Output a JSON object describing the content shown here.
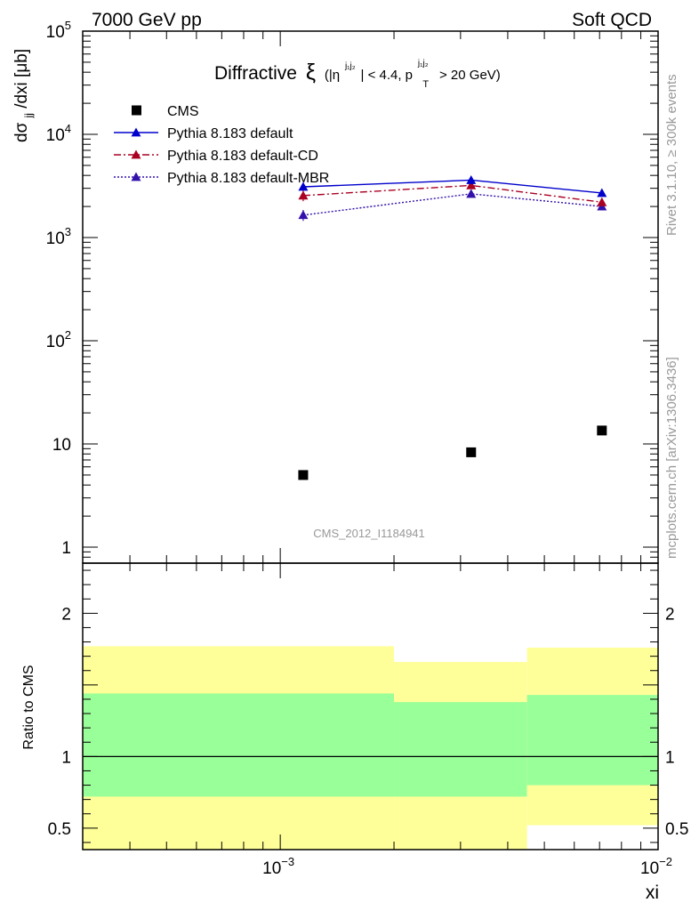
{
  "header": {
    "left": "7000 GeV pp",
    "right": "Soft QCD"
  },
  "side_labels": {
    "rivet": "Rivet 3.1.10, ≥ 300k events",
    "mcplots": "mcplots.cern.ch [arXiv:1306.3436]"
  },
  "watermark": "CMS_2012_I1184941",
  "chart_data": {
    "type": "scatter",
    "title": {
      "main": "Diffractive",
      "xi_symbol": "ξ",
      "cut_prefix": "(|η",
      "eta_sup": "j₁j₂",
      "cut_mid": "| < 4.4, p",
      "pt_sub": "T",
      "pt_sup": "j₁j₂",
      "cut_suffix": "> 20 GeV)"
    },
    "ylabel": "dσjj/dxi [μb]",
    "ylabel_parts": {
      "d": "dσ",
      "sub": "jj",
      "rest": "/dxi [μb]"
    },
    "xlabel": "xi",
    "xscale": "log",
    "yscale": "log",
    "xlim": [
      0.0003,
      0.01
    ],
    "ylim": [
      0.7,
      100000
    ],
    "y_ticks": [
      {
        "value": 1,
        "label": "1",
        "base": "1",
        "exp": ""
      },
      {
        "value": 10,
        "label": "10",
        "base": "10",
        "exp": ""
      },
      {
        "value": 100,
        "label": "10^2",
        "base": "10",
        "exp": "2"
      },
      {
        "value": 1000,
        "label": "10^3",
        "base": "10",
        "exp": "3"
      },
      {
        "value": 10000,
        "label": "10^4",
        "base": "10",
        "exp": "4"
      },
      {
        "value": 100000,
        "label": "10^5",
        "base": "10",
        "exp": "5"
      }
    ],
    "x_ticks": [
      {
        "value": 0.001,
        "label": "10^-3",
        "base": "10",
        "exp": "−3"
      },
      {
        "value": 0.01,
        "label": "10^-2",
        "base": "10",
        "exp": "−2"
      }
    ],
    "bins": [
      [
        0.0003,
        0.002
      ],
      [
        0.002,
        0.0045
      ],
      [
        0.0045,
        0.01
      ]
    ],
    "x": [
      0.00115,
      0.0032,
      0.0071
    ],
    "series": [
      {
        "name": "CMS",
        "values": [
          5.0,
          8.3,
          13.5
        ],
        "color": "#000000",
        "marker": "square",
        "line": "none"
      },
      {
        "name": "Pythia 8.183 default",
        "values": [
          3100,
          3600,
          2700
        ],
        "errors": [
          250,
          280,
          150
        ],
        "color": "#0000cc",
        "marker": "triangle",
        "line": "solid"
      },
      {
        "name": "Pythia 8.183 default-CD",
        "values": [
          2550,
          3200,
          2200
        ],
        "errors": [
          300,
          250,
          150
        ],
        "color": "#aa0022",
        "marker": "triangle",
        "line": "dashdot"
      },
      {
        "name": "Pythia 8.183 default-MBR",
        "values": [
          1650,
          2650,
          2000
        ],
        "errors": [
          200,
          200,
          120
        ],
        "color": "#3311aa",
        "marker": "triangle",
        "line": "dotted"
      }
    ],
    "ratio": {
      "ylabel": "Ratio to CMS",
      "ylim": [
        0.35,
        2.35
      ],
      "ticks": [
        {
          "value": 0.5,
          "label": "0.5"
        },
        {
          "value": 1,
          "label": "1"
        },
        {
          "value": 2,
          "label": "2"
        }
      ],
      "stat_band": [
        {
          "low": 0.72,
          "high": 1.44
        },
        {
          "low": 0.72,
          "high": 1.38
        },
        {
          "low": 0.8,
          "high": 1.43
        }
      ],
      "total_band": [
        {
          "low": 0.35,
          "high": 1.77
        },
        {
          "low": 0.35,
          "high": 1.66
        },
        {
          "low": 0.52,
          "high": 1.76
        }
      ],
      "colors": {
        "stat": "#99ff99",
        "total": "#ffff99"
      }
    }
  }
}
